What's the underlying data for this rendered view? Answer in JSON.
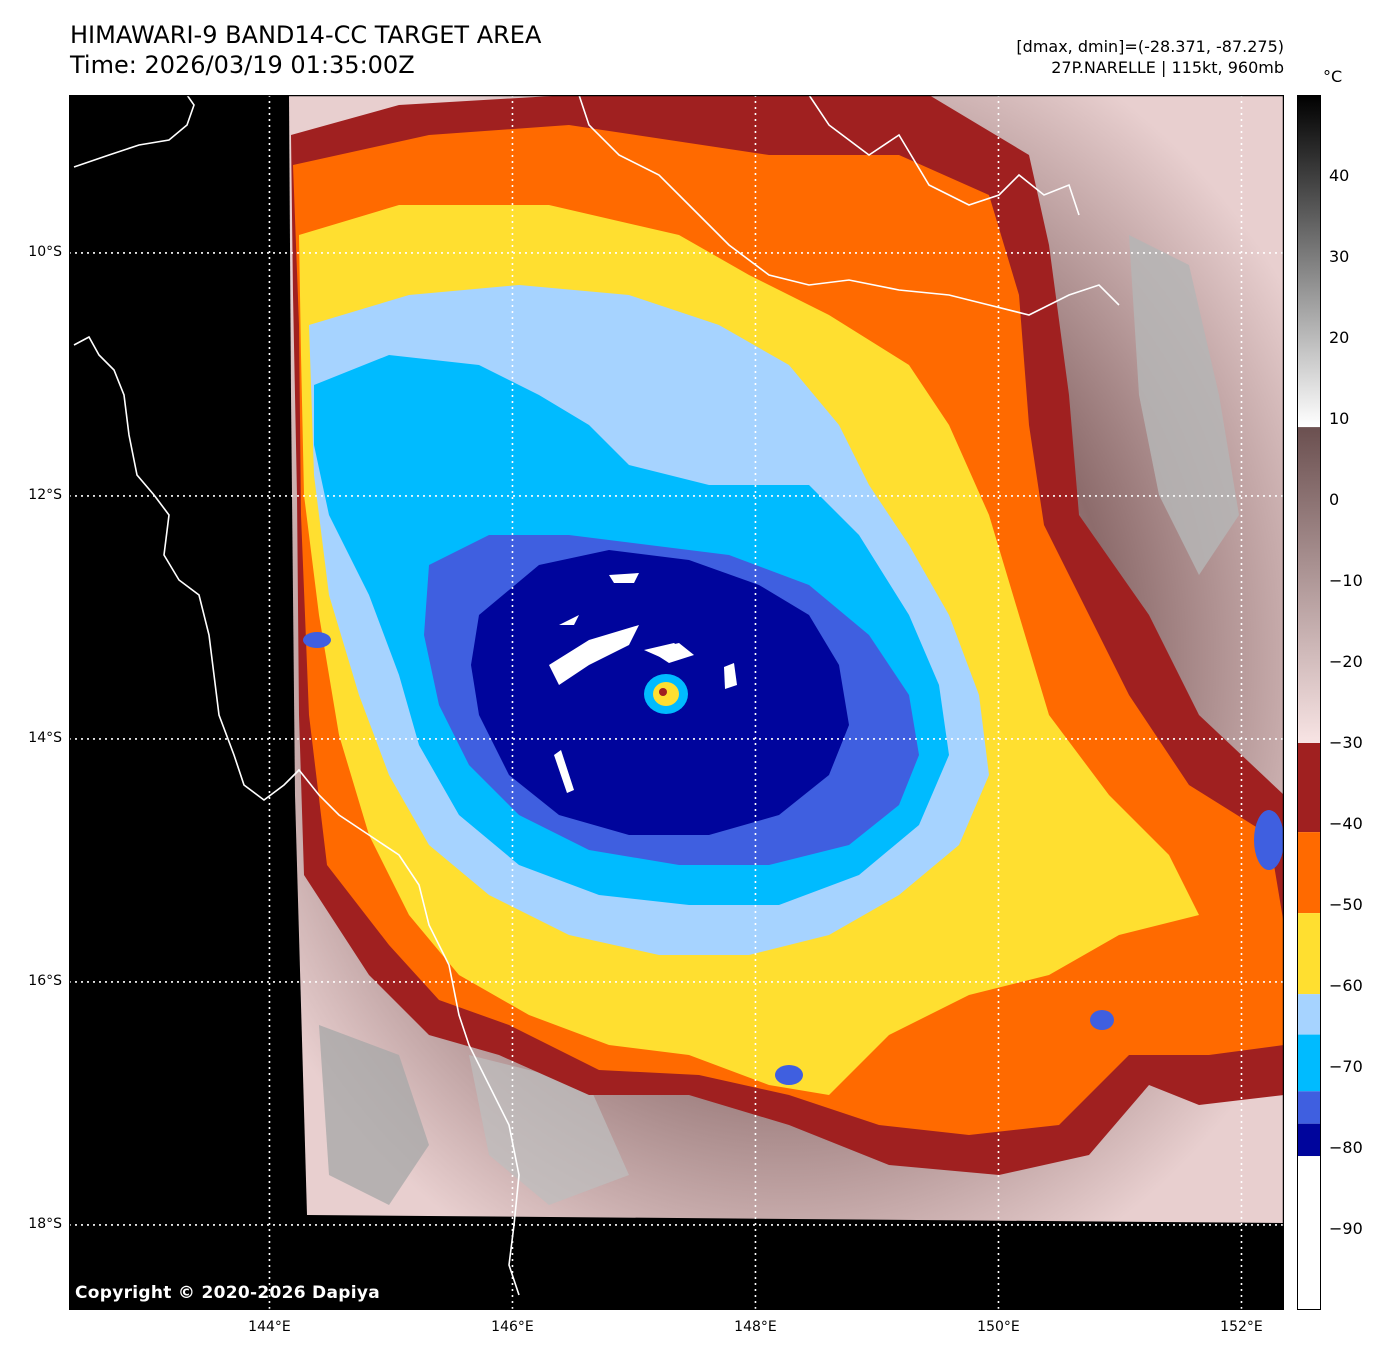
{
  "header": {
    "title_line1": "HIMAWARI-9 BAND14-CC TARGET AREA",
    "title_line2": "Time: 2026/03/19 01:35:00Z",
    "stats_line1": "[dmax, dmin]=(-28.371, -87.275)",
    "stats_line2": "27P.NARELLE | 115kt, 960mb"
  },
  "map": {
    "lon_range": [
      142.35,
      152.35
    ],
    "lat_range": [
      -18.7,
      -8.7
    ],
    "lat_ticks": [
      {
        "value": -10,
        "label": "10°S"
      },
      {
        "value": -12,
        "label": "12°S"
      },
      {
        "value": -14,
        "label": "14°S"
      },
      {
        "value": -16,
        "label": "16°S"
      },
      {
        "value": -18,
        "label": "18°S"
      }
    ],
    "lon_ticks": [
      {
        "value": 144,
        "label": "144°E"
      },
      {
        "value": 146,
        "label": "146°E"
      },
      {
        "value": 148,
        "label": "148°E"
      },
      {
        "value": 150,
        "label": "150°E"
      },
      {
        "value": 152,
        "label": "152°E"
      }
    ],
    "storm_center": {
      "lon": 147.3,
      "lat": -13.6
    },
    "copyright": "Copyright © 2020-2026 Dapiya",
    "grid_color": "#ffffff",
    "coastline_color": "#ffffff",
    "nodata_color": "#000000"
  },
  "colorbar": {
    "unit": "°C",
    "range": [
      -100,
      50
    ],
    "ticks": [
      {
        "value": 40,
        "label": "40"
      },
      {
        "value": 30,
        "label": "30"
      },
      {
        "value": 20,
        "label": "20"
      },
      {
        "value": 10,
        "label": "10"
      },
      {
        "value": 0,
        "label": "0"
      },
      {
        "value": -10,
        "label": "−10"
      },
      {
        "value": -20,
        "label": "−20"
      },
      {
        "value": -30,
        "label": "−30"
      },
      {
        "value": -40,
        "label": "−40"
      },
      {
        "value": -50,
        "label": "−50"
      },
      {
        "value": -60,
        "label": "−60"
      },
      {
        "value": -70,
        "label": "−70"
      },
      {
        "value": -80,
        "label": "−80"
      },
      {
        "value": -90,
        "label": "−90"
      }
    ],
    "bands": [
      {
        "from": 9,
        "to": 50,
        "color_from": "#ffffff",
        "color_to": "#000000"
      },
      {
        "from": -30,
        "to": 9,
        "color_from": "#f8e4e4",
        "color_to": "#6b5050"
      },
      {
        "from": -41,
        "to": -30,
        "color_from": "#a02020",
        "color_to": "#a02020"
      },
      {
        "from": -51,
        "to": -41,
        "color_from": "#ff6a00",
        "color_to": "#ff6a00"
      },
      {
        "from": -61,
        "to": -51,
        "color_from": "#ffdf30",
        "color_to": "#ffdf30"
      },
      {
        "from": -66,
        "to": -61,
        "color_from": "#a6d3ff",
        "color_to": "#a6d3ff"
      },
      {
        "from": -73,
        "to": -66,
        "color_from": "#00bbff",
        "color_to": "#00bbff"
      },
      {
        "from": -77,
        "to": -73,
        "color_from": "#3f5fe0",
        "color_to": "#3f5fe0"
      },
      {
        "from": -81,
        "to": -77,
        "color_from": "#00059c",
        "color_to": "#00059c"
      },
      {
        "from": -100,
        "to": -81,
        "color_from": "#ffffff",
        "color_to": "#ffffff"
      }
    ]
  }
}
